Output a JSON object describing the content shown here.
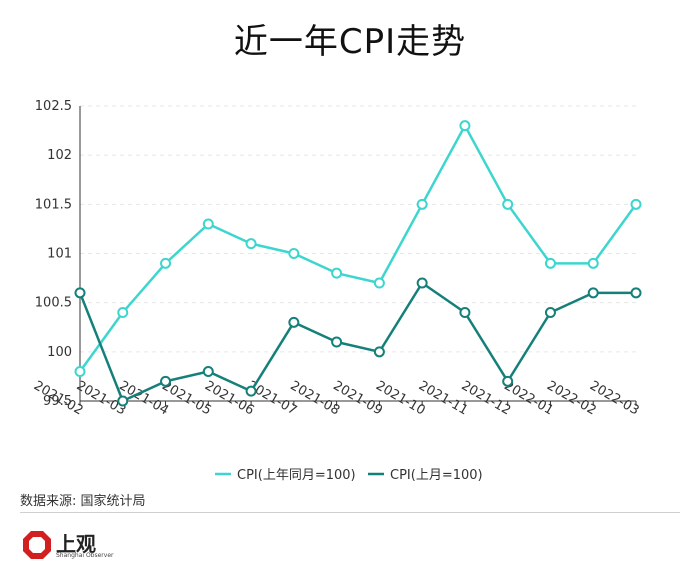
{
  "title": "近一年CPI走势",
  "source": "数据来源: 国家统计局",
  "logo": {
    "name": "上观",
    "sub": "Shanghai Observer"
  },
  "chart_data": {
    "type": "line",
    "title": "近一年CPI走势",
    "x": [
      "2021-02",
      "2021-03",
      "2021-04",
      "2021-05",
      "2021-06",
      "2021-07",
      "2021-08",
      "2021-09",
      "2021-10",
      "2021-11",
      "2021-12",
      "2022-01",
      "2022-02",
      "2022-03"
    ],
    "y_ticks": [
      "99.5",
      "100",
      "100.5",
      "101",
      "101.5",
      "102",
      "102.5"
    ],
    "ylim": [
      99.5,
      102.5
    ],
    "grid": true,
    "legend_position": "bottom",
    "series": [
      {
        "name": "CPI(上年同月=100)",
        "color": "#3dd6cf",
        "values": [
          99.8,
          100.4,
          100.9,
          101.3,
          101.1,
          101.0,
          100.8,
          100.7,
          101.5,
          102.3,
          101.5,
          100.9,
          100.9,
          101.5
        ]
      },
      {
        "name": "CPI(上月=100)",
        "color": "#15807a",
        "values": [
          100.6,
          99.5,
          99.7,
          99.8,
          99.6,
          100.3,
          100.1,
          100.0,
          100.7,
          100.4,
          99.7,
          100.4,
          100.6,
          100.6
        ]
      }
    ]
  }
}
